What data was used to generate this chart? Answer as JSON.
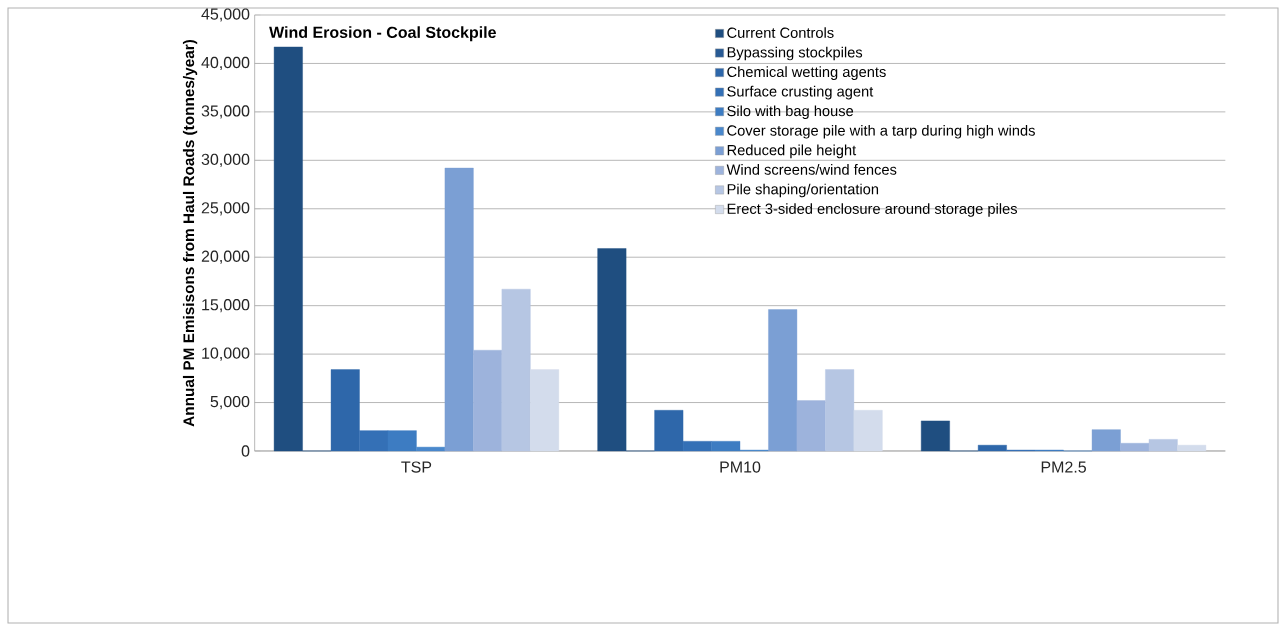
{
  "chart_data": {
    "type": "bar",
    "title": "Wind Erosion - Coal Stockpile",
    "ylabel": "Annual PM Emisisons from Haul Roads (tonnes/year)",
    "categories": [
      "TSP",
      "PM10",
      "PM2.5"
    ],
    "series": [
      {
        "name": "Current Controls",
        "color": "#1f4e80",
        "values": [
          41700,
          20900,
          3100
        ]
      },
      {
        "name": "Bypassing stockpiles",
        "color": "#285a94",
        "values": [
          0,
          0,
          0
        ]
      },
      {
        "name": "Chemical wetting agents",
        "color": "#2e67aa",
        "values": [
          8400,
          4200,
          600
        ]
      },
      {
        "name": "Surface crusting agent",
        "color": "#3470b6",
        "values": [
          2100,
          1000,
          100
        ]
      },
      {
        "name": "Silo with bag house",
        "color": "#3d7cc2",
        "values": [
          2100,
          1000,
          100
        ]
      },
      {
        "name": "Cover storage pile with a tarp during high winds",
        "color": "#4a88cc",
        "values": [
          400,
          100,
          0
        ]
      },
      {
        "name": "Reduced pile height",
        "color": "#7b9fd4",
        "values": [
          29200,
          14600,
          2200
        ]
      },
      {
        "name": "Wind screens/wind fences",
        "color": "#9db3dc",
        "values": [
          10400,
          5200,
          800
        ]
      },
      {
        "name": "Pile shaping/orientation",
        "color": "#b6c6e3",
        "values": [
          16700,
          8400,
          1200
        ]
      },
      {
        "name": "Erect 3-sided enclosure around storage piles",
        "color": "#d3dcec",
        "values": [
          8400,
          4200,
          600
        ]
      }
    ],
    "ylim": [
      0,
      45000
    ],
    "yticks": [
      0,
      {
        "value": 5000,
        "label": "5,000"
      },
      {
        "value": 10000,
        "label": "10,000"
      },
      {
        "value": 15000,
        "label": "15,000"
      },
      {
        "value": 20000,
        "label": "20,000"
      },
      {
        "value": 25000,
        "label": "25,000"
      },
      {
        "value": 30000,
        "label": "30,000"
      },
      {
        "value": 35000,
        "label": "35,000"
      },
      {
        "value": 40000,
        "label": "40,000"
      },
      {
        "value": 45000,
        "label": "45,000"
      }
    ],
    "grid": "y",
    "legend": "top right"
  }
}
